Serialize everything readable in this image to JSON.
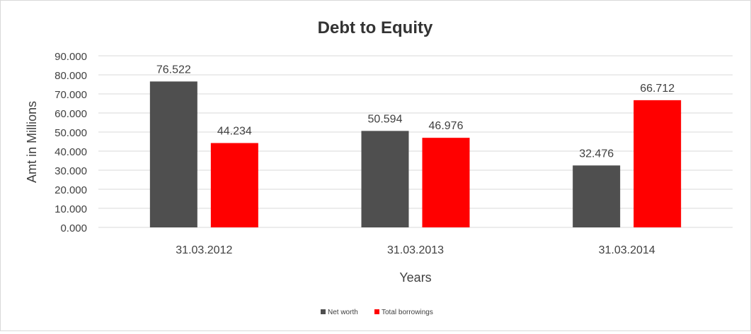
{
  "chart_data": {
    "type": "bar",
    "title": "Debt to Equity",
    "xlabel": "Years",
    "ylabel": "Amt in Millions",
    "categories": [
      "31.03.2012",
      "31.03.2013",
      "31.03.2014"
    ],
    "series": [
      {
        "name": "Net worth",
        "color": "#4f4f4f",
        "values": [
          76.522,
          50.594,
          32.476
        ],
        "labels": [
          "76.522",
          "50.594",
          "32.476"
        ]
      },
      {
        "name": "Total borrowings",
        "color": "#ff0000",
        "values": [
          44.234,
          46.976,
          66.712
        ],
        "labels": [
          "44.234",
          "46.976",
          "66.712"
        ]
      }
    ],
    "ylim": [
      0,
      90
    ],
    "yticks": [
      "0.000",
      "10.000",
      "20.000",
      "30.000",
      "40.000",
      "50.000",
      "60.000",
      "70.000",
      "80.000",
      "90.000"
    ],
    "grid": true,
    "legend_position": "bottom"
  }
}
